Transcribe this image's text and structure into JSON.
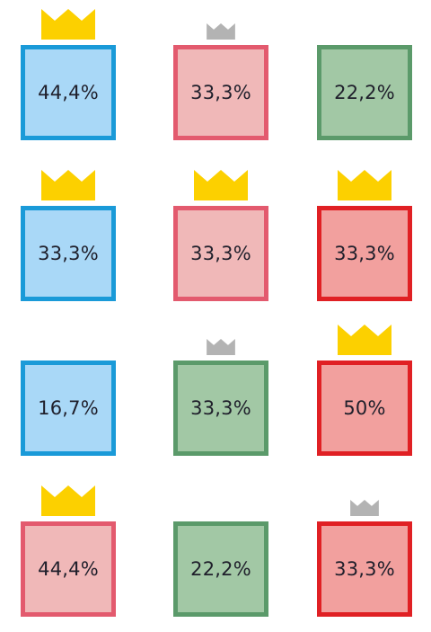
{
  "colors": {
    "blue": {
      "fill": "#a9d8f7",
      "border": "#1a9ad8"
    },
    "pink": {
      "fill": "#f0b8b8",
      "border": "#e35a6e"
    },
    "green": {
      "fill": "#a2c8a5",
      "border": "#5b9a6a"
    },
    "red": {
      "fill": "#f2a09e",
      "border": "#e02024"
    },
    "crown_gold": "#fcd000",
    "crown_silver": "#b3b3b3"
  },
  "rows": [
    [
      {
        "value": "44,4%",
        "color": "blue",
        "crown": "gold-crown-icon"
      },
      {
        "value": "33,3%",
        "color": "pink",
        "crown": "silver-crown-icon"
      },
      {
        "value": "22,2%",
        "color": "green",
        "crown": ""
      }
    ],
    [
      {
        "value": "33,3%",
        "color": "blue",
        "crown": "gold-crown-icon"
      },
      {
        "value": "33,3%",
        "color": "pink",
        "crown": "gold-crown-icon"
      },
      {
        "value": "33,3%",
        "color": "red",
        "crown": "gold-crown-icon"
      }
    ],
    [
      {
        "value": "16,7%",
        "color": "blue",
        "crown": ""
      },
      {
        "value": "33,3%",
        "color": "green",
        "crown": "silver-crown-icon"
      },
      {
        "value": "50%",
        "color": "red",
        "crown": "gold-crown-icon"
      }
    ],
    [
      {
        "value": "44,4%",
        "color": "pink",
        "crown": "gold-crown-icon"
      },
      {
        "value": "22,2%",
        "color": "green",
        "crown": ""
      },
      {
        "value": "33,3%",
        "color": "red",
        "crown": "silver-crown-icon"
      }
    ]
  ]
}
